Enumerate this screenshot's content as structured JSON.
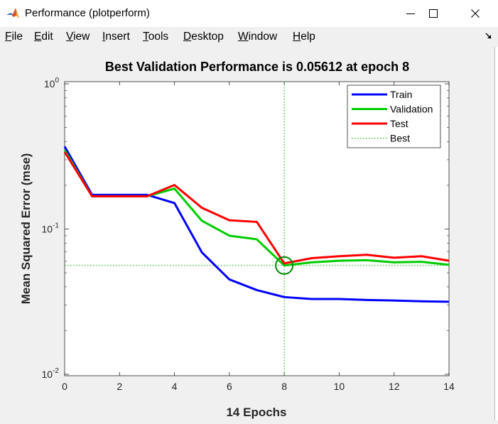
{
  "window": {
    "title": "Performance (plotperform)",
    "icon": "matlab-icon"
  },
  "menu": [
    {
      "mn": "F",
      "rest": "ile"
    },
    {
      "mn": "E",
      "rest": "dit"
    },
    {
      "mn": "V",
      "rest": "iew"
    },
    {
      "mn": "I",
      "rest": "nsert"
    },
    {
      "mn": "T",
      "rest": "ools"
    },
    {
      "mn": "D",
      "rest": "esktop"
    },
    {
      "mn": "W",
      "rest": "indow"
    },
    {
      "mn": "H",
      "rest": "elp"
    }
  ],
  "chart_data": {
    "type": "line",
    "title": "Best Validation Performance is 0.05612 at epoch 8",
    "xlabel": "14 Epochs",
    "ylabel": "Mean Squared Error  (mse)",
    "xlim": [
      0,
      14
    ],
    "ylim": [
      0.01,
      1
    ],
    "yscale": "log",
    "xticks": [
      0,
      2,
      4,
      6,
      8,
      10,
      12,
      14
    ],
    "yticks": [
      {
        "value": 1,
        "base": "10",
        "exp": "0"
      },
      {
        "value": 0.1,
        "base": "10",
        "exp": "-1"
      },
      {
        "value": 0.01,
        "base": "10",
        "exp": "-2"
      }
    ],
    "legend_position": "top-right",
    "x": [
      0,
      1,
      2,
      3,
      4,
      5,
      6,
      7,
      8,
      9,
      10,
      11,
      12,
      13,
      14
    ],
    "series": [
      {
        "name": "Train",
        "color": "#0000ff",
        "values": [
          0.37,
          0.172,
          0.172,
          0.172,
          0.151,
          0.069,
          0.045,
          0.038,
          0.034,
          0.033,
          0.033,
          0.0325,
          0.0322,
          0.0318,
          0.0316
        ]
      },
      {
        "name": "Validation",
        "color": "#00cc00",
        "values": [
          0.35,
          0.168,
          0.168,
          0.168,
          0.19,
          0.114,
          0.09,
          0.085,
          0.05612,
          0.059,
          0.0605,
          0.061,
          0.059,
          0.0595,
          0.0567
        ]
      },
      {
        "name": "Test",
        "color": "#ff0000",
        "values": [
          0.34,
          0.168,
          0.168,
          0.168,
          0.201,
          0.14,
          0.115,
          0.112,
          0.058,
          0.063,
          0.065,
          0.0665,
          0.0635,
          0.065,
          0.0605
        ]
      }
    ],
    "best": {
      "name": "Best",
      "color": "#00aa00",
      "epoch": 8,
      "value": 0.05612
    }
  }
}
